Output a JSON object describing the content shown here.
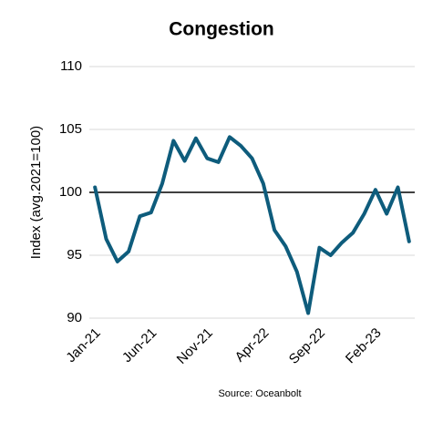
{
  "chart_data": {
    "type": "line",
    "title": "Congestion",
    "y_label": "Index (avg.2021=100)",
    "source": "Source: Oceanbolt",
    "categories": [
      "Jan-21",
      null,
      null,
      null,
      null,
      "Jun-21",
      null,
      null,
      null,
      null,
      "Nov-21",
      null,
      null,
      null,
      null,
      "Apr-22",
      null,
      null,
      null,
      null,
      "Sep-22",
      null,
      null,
      null,
      null,
      "Feb-23",
      null,
      null,
      null
    ],
    "series": [
      {
        "name": "Congestion",
        "color": "#0e5c7c",
        "values": [
          100.4,
          96.3,
          94.5,
          95.3,
          98.1,
          98.4,
          100.7,
          104.1,
          102.5,
          104.3,
          102.7,
          102.4,
          104.4,
          103.7,
          102.7,
          100.7,
          97.0,
          95.7,
          93.7,
          90.4,
          95.6,
          95.0,
          96.0,
          96.8,
          98.3,
          100.2,
          98.3,
          100.4,
          96.1
        ]
      }
    ],
    "ylim": [
      90,
      110
    ],
    "yticks": [
      90,
      95,
      100,
      105,
      110
    ],
    "grid": true,
    "baseline": 100
  }
}
